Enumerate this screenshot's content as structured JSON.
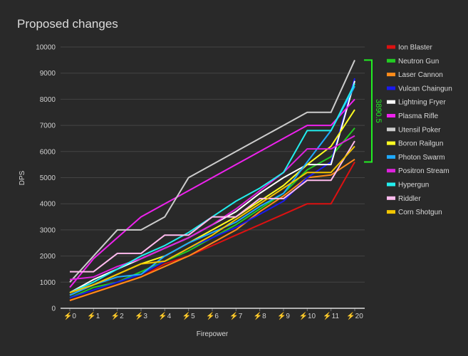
{
  "chart_data": {
    "type": "line",
    "title": "Proposed changes",
    "xlabel": "Firepower",
    "ylabel": "DPS",
    "ylim": [
      0,
      10000
    ],
    "yticks": [
      0,
      1000,
      2000,
      3000,
      4000,
      5000,
      6000,
      7000,
      8000,
      9000,
      10000
    ],
    "categories": [
      "⚡0",
      "⚡1",
      "⚡2",
      "⚡3",
      "⚡4",
      "⚡5",
      "⚡6",
      "⚡7",
      "⚡8",
      "⚡9",
      "⚡10",
      "⚡11",
      "⚡20"
    ],
    "grid": true,
    "legend_position": "right",
    "series": [
      {
        "name": "Ion Blaster",
        "color": "#dd1111",
        "values": [
          300,
          600,
          900,
          1200,
          1700,
          2000,
          2400,
          2800,
          3200,
          3600,
          4000,
          4000,
          5600
        ]
      },
      {
        "name": "Neutron Gun",
        "color": "#22cc22",
        "values": [
          400,
          800,
          1000,
          1400,
          1800,
          2200,
          2700,
          3200,
          3800,
          4400,
          5300,
          5800,
          6900
        ]
      },
      {
        "name": "Laser Cannon",
        "color": "#ff8c1a",
        "values": [
          300,
          600,
          900,
          1200,
          1600,
          2000,
          2500,
          3000,
          3700,
          4300,
          5000,
          5100,
          5700
        ]
      },
      {
        "name": "Vulcan Chaingun",
        "color": "#1a1aee",
        "values": [
          400,
          700,
          1000,
          1300,
          1800,
          2300,
          2700,
          3100,
          3600,
          4100,
          5000,
          5600,
          8800
        ]
      },
      {
        "name": "Lightning Fryer",
        "color": "#ffffff",
        "values": [
          600,
          1100,
          1500,
          1900,
          2300,
          2700,
          3200,
          3700,
          4400,
          5000,
          5500,
          5500,
          8700
        ]
      },
      {
        "name": "Plasma Rifle",
        "color": "#ee22ee",
        "values": [
          800,
          1900,
          2700,
          3500,
          4000,
          4500,
          5000,
          5500,
          6000,
          6500,
          7000,
          7000,
          8000
        ]
      },
      {
        "name": "Utensil Poker",
        "color": "#cccccc",
        "values": [
          1000,
          2000,
          3000,
          3000,
          3500,
          5000,
          5500,
          6000,
          6500,
          7000,
          7500,
          7500,
          9500
        ]
      },
      {
        "name": "Boron Railgun",
        "color": "#ffff22",
        "values": [
          500,
          900,
          1300,
          1700,
          2000,
          2500,
          3000,
          3500,
          4100,
          4700,
          5500,
          6200,
          7600
        ]
      },
      {
        "name": "Photon Swarm",
        "color": "#1eaaff",
        "values": [
          500,
          900,
          1200,
          1300,
          2000,
          2500,
          2900,
          3300,
          3900,
          4400,
          5600,
          6800,
          8500
        ]
      },
      {
        "name": "Positron Stream",
        "color": "#dd22dd",
        "values": [
          1100,
          1200,
          1600,
          1900,
          2300,
          2700,
          3200,
          3800,
          4500,
          5200,
          6100,
          6100,
          6600
        ]
      },
      {
        "name": "Hypergun",
        "color": "#22eeee",
        "values": [
          600,
          1000,
          1500,
          2000,
          2400,
          2900,
          3500,
          4100,
          4600,
          5200,
          6800,
          6800,
          8600
        ]
      },
      {
        "name": "Riddler",
        "color": "#ffbbee",
        "values": [
          1400,
          1400,
          2100,
          2100,
          2800,
          2800,
          3500,
          3500,
          4200,
          4200,
          4900,
          4900,
          6400
        ]
      },
      {
        "name": "Corn Shotgun",
        "color": "#f2c500",
        "values": [
          600,
          900,
          1300,
          1700,
          1800,
          2300,
          2800,
          3400,
          4000,
          4600,
          5200,
          5200,
          6200
        ]
      }
    ],
    "annotation": {
      "label": "3890.5",
      "from": 5600,
      "to": 9500,
      "color": "#22ee22"
    }
  }
}
